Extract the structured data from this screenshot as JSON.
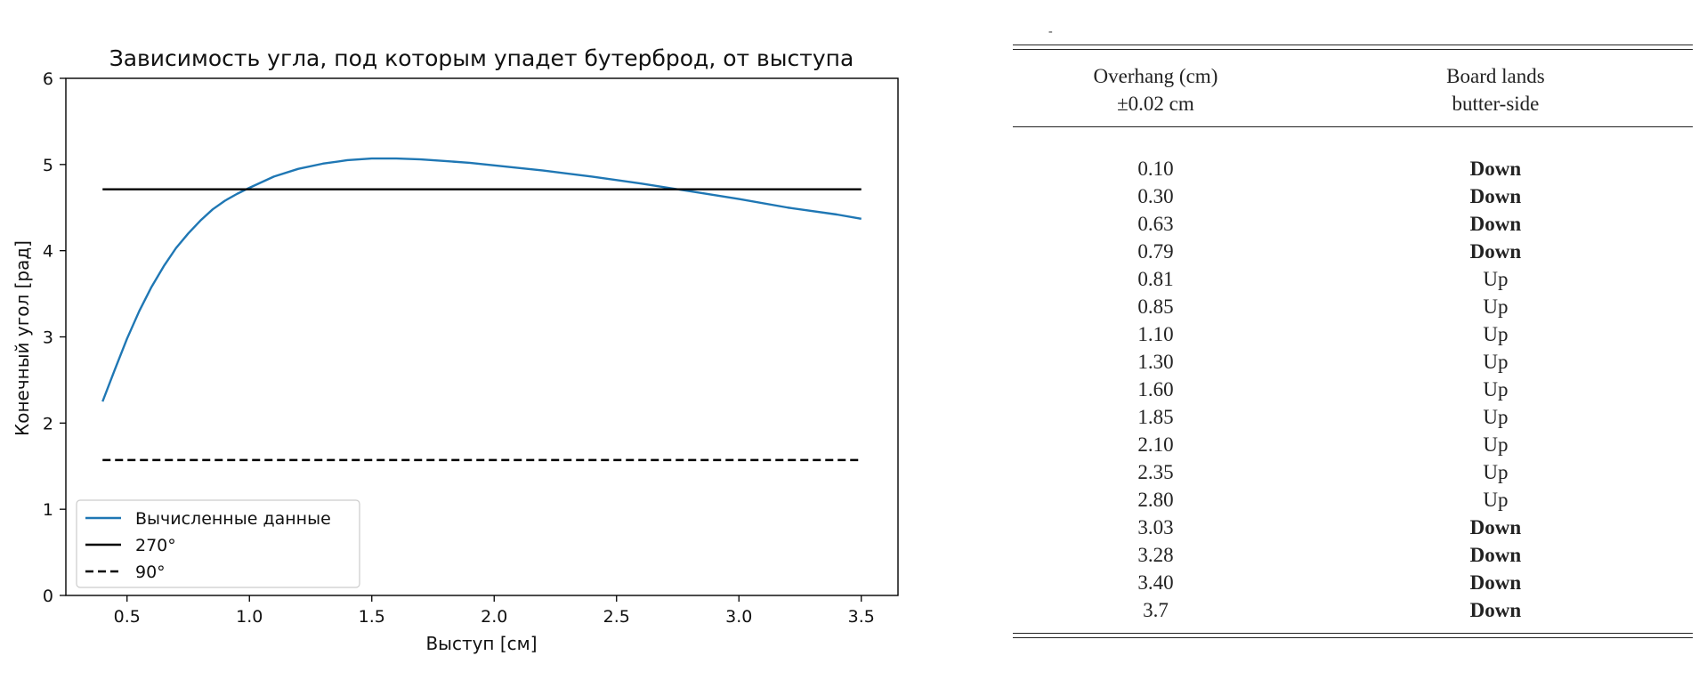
{
  "chart_data": {
    "type": "line",
    "title": "Зависимость угла, под которым упадет бутерброд, от выступа",
    "xlabel": "Выступ [см]",
    "ylabel": "Конечный угол [рад]",
    "xlim": [
      0.25,
      3.65
    ],
    "ylim": [
      0,
      6
    ],
    "xticks": [
      0.5,
      1.0,
      1.5,
      2.0,
      2.5,
      3.0,
      3.5
    ],
    "xtick_labels": [
      "0.5",
      "1.0",
      "1.5",
      "2.0",
      "2.5",
      "3.0",
      "3.5"
    ],
    "yticks": [
      0,
      1,
      2,
      3,
      4,
      5,
      6
    ],
    "ytick_labels": [
      "0",
      "1",
      "2",
      "3",
      "4",
      "5",
      "6"
    ],
    "grid": false,
    "legend_position": "lower-left",
    "series": [
      {
        "name": "Вычисленные данные",
        "style": "solid",
        "color": "#1f77b4",
        "x": [
          0.4,
          0.45,
          0.5,
          0.55,
          0.6,
          0.65,
          0.7,
          0.75,
          0.8,
          0.85,
          0.9,
          0.95,
          1.0,
          1.1,
          1.2,
          1.3,
          1.4,
          1.5,
          1.6,
          1.7,
          1.8,
          1.9,
          2.0,
          2.2,
          2.4,
          2.6,
          2.8,
          3.0,
          3.2,
          3.4,
          3.5
        ],
        "y": [
          2.25,
          2.62,
          2.98,
          3.3,
          3.58,
          3.82,
          4.03,
          4.2,
          4.35,
          4.48,
          4.58,
          4.66,
          4.73,
          4.86,
          4.95,
          5.01,
          5.05,
          5.07,
          5.07,
          5.06,
          5.04,
          5.02,
          4.99,
          4.93,
          4.86,
          4.78,
          4.69,
          4.6,
          4.5,
          4.42,
          4.37
        ]
      },
      {
        "name": "270°",
        "style": "solid",
        "color": "#000000",
        "x": [
          0.4,
          3.5
        ],
        "y": [
          4.712,
          4.712
        ]
      },
      {
        "name": "90°",
        "style": "dashed",
        "color": "#000000",
        "x": [
          0.4,
          3.5
        ],
        "y": [
          1.571,
          1.571
        ]
      }
    ]
  },
  "table": {
    "top_mark": "-",
    "headers": [
      [
        "Overhang (cm)",
        "±0.02 cm"
      ],
      [
        "Board lands",
        "butter-side"
      ]
    ],
    "rows": [
      {
        "overhang": "0.10",
        "result": "Down",
        "bold": true
      },
      {
        "overhang": "0.30",
        "result": "Down",
        "bold": true
      },
      {
        "overhang": "0.63",
        "result": "Down",
        "bold": true
      },
      {
        "overhang": "0.79",
        "result": "Down",
        "bold": true
      },
      {
        "overhang": "0.81",
        "result": "Up",
        "bold": false
      },
      {
        "overhang": "0.85",
        "result": "Up",
        "bold": false
      },
      {
        "overhang": "1.10",
        "result": "Up",
        "bold": false
      },
      {
        "overhang": "1.30",
        "result": "Up",
        "bold": false
      },
      {
        "overhang": "1.60",
        "result": "Up",
        "bold": false
      },
      {
        "overhang": "1.85",
        "result": "Up",
        "bold": false
      },
      {
        "overhang": "2.10",
        "result": "Up",
        "bold": false
      },
      {
        "overhang": "2.35",
        "result": "Up",
        "bold": false
      },
      {
        "overhang": "2.80",
        "result": "Up",
        "bold": false
      },
      {
        "overhang": "3.03",
        "result": "Down",
        "bold": true
      },
      {
        "overhang": "3.28",
        "result": "Down",
        "bold": true
      },
      {
        "overhang": "3.40",
        "result": "Down",
        "bold": true
      },
      {
        "overhang": "3.7",
        "result": "Down",
        "bold": true
      }
    ]
  }
}
